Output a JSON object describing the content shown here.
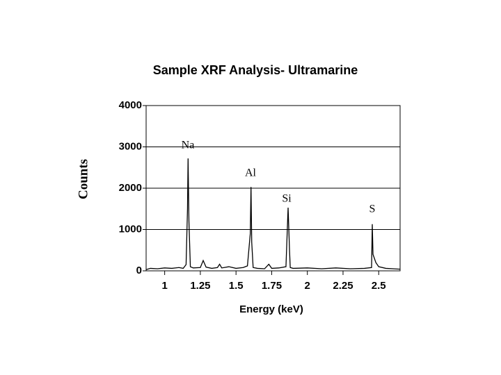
{
  "chart_data": {
    "type": "line",
    "title": "Sample XRF Analysis- Ultramarine",
    "x_label": "Energy (keV)",
    "y_label": "Counts",
    "x": [
      0.87,
      0.9,
      0.95,
      1.0,
      1.05,
      1.1,
      1.13,
      1.15,
      1.16,
      1.164,
      1.17,
      1.18,
      1.2,
      1.25,
      1.27,
      1.29,
      1.33,
      1.37,
      1.385,
      1.4,
      1.45,
      1.5,
      1.55,
      1.58,
      1.6,
      1.605,
      1.61,
      1.62,
      1.65,
      1.7,
      1.73,
      1.75,
      1.8,
      1.85,
      1.865,
      1.875,
      1.88,
      1.9,
      2.0,
      2.1,
      2.2,
      2.3,
      2.4,
      2.45,
      2.455,
      2.46,
      2.48,
      2.5,
      2.55,
      2.6,
      2.65
    ],
    "values": [
      30,
      60,
      50,
      70,
      60,
      80,
      60,
      150,
      1500,
      2720,
      1200,
      100,
      70,
      80,
      250,
      90,
      60,
      80,
      160,
      70,
      100,
      60,
      80,
      120,
      900,
      2030,
      700,
      80,
      60,
      50,
      160,
      60,
      70,
      100,
      1530,
      500,
      80,
      60,
      70,
      50,
      70,
      50,
      60,
      80,
      1130,
      400,
      200,
      100,
      60,
      50,
      40
    ],
    "color": "#000000",
    "annotations": [
      "Na",
      "Al",
      "Si",
      "S"
    ],
    "xlim": [
      0.87,
      2.65
    ],
    "xticks": [
      1,
      1.25,
      1.5,
      1.75,
      2,
      2.25,
      2.5
    ],
    "ylim": [
      0,
      4000
    ],
    "yticks": [
      0,
      1000,
      2000,
      3000,
      4000
    ],
    "grid": true
  }
}
